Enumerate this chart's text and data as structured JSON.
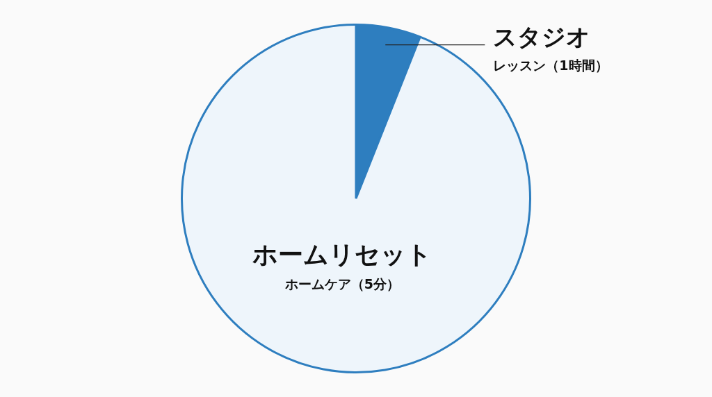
{
  "chart_data": {
    "type": "pie",
    "categories": [
      "スタジオ",
      "ホームリセット"
    ],
    "annotations": [
      "レッスン（1時間）",
      "ホームケア（5分）"
    ],
    "values": [
      6,
      94
    ],
    "colors": [
      "#2e7ebf",
      "#eef5fb"
    ],
    "legend": false
  }
}
